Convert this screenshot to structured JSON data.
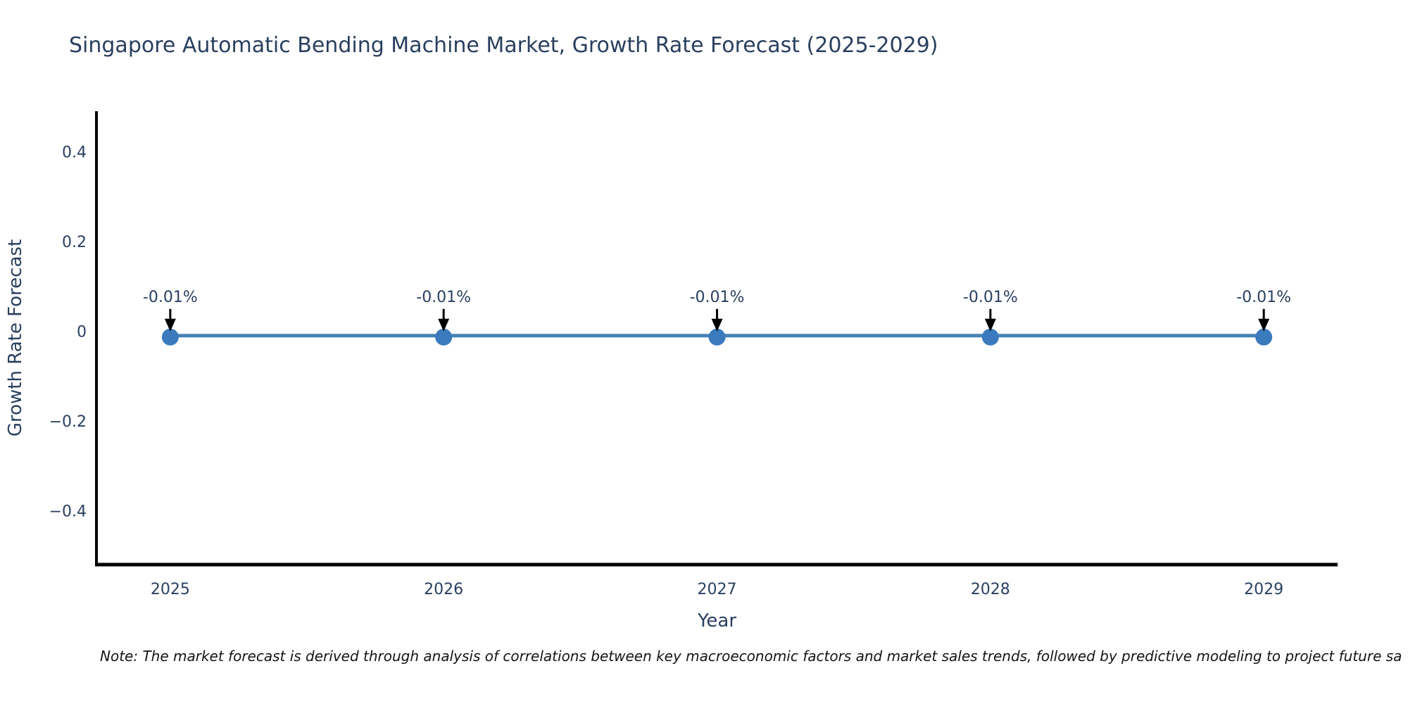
{
  "title": "Singapore Automatic Bending Machine Market, Growth Rate Forecast (2025-2029)",
  "note": "Note: The market forecast is derived through analysis of correlations between key macroeconomic factors and market sales trends, followed by predictive modeling to project future sa",
  "colors": {
    "text": "#2a3f5f",
    "axis": "#000000",
    "line": "#4682b4",
    "marker": "#3a7abd",
    "arrow": "#000000",
    "note_text": "#141414",
    "background": "#ffffff"
  },
  "chart_data": {
    "type": "line",
    "title": "Singapore Automatic Bending Machine Market, Growth Rate Forecast (2025-2029)",
    "xlabel": "Year",
    "ylabel": "Growth Rate Forecast",
    "x": [
      2025,
      2026,
      2027,
      2028,
      2029
    ],
    "y": [
      -0.01,
      -0.01,
      -0.01,
      -0.01,
      -0.01
    ],
    "point_labels": [
      "-0.01%",
      "-0.01%",
      "-0.01%",
      "-0.01%",
      "-0.01%"
    ],
    "xticks": [
      2025,
      2026,
      2027,
      2028,
      2029
    ],
    "xtick_labels": [
      "2025",
      "2026",
      "2027",
      "2028",
      "2029"
    ],
    "yticks": [
      0.4,
      0.2,
      0,
      -0.2,
      -0.4
    ],
    "ytick_labels": [
      "0.4",
      "0.2",
      "0",
      "−0.2",
      "−0.4"
    ],
    "xlim": [
      2024.73,
      2029.27
    ],
    "ylim": [
      -0.52,
      0.49
    ],
    "grid": false,
    "legend": "none"
  }
}
